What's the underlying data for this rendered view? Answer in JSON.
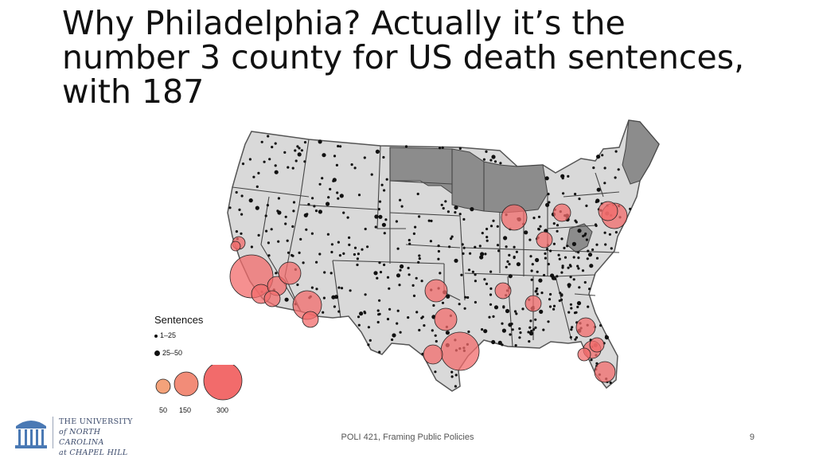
{
  "slide": {
    "title": "Why Philadelphia? Actually it’s the number 3 county for US death sentences, with 187",
    "footer": "POLI 421, Framing Public Policies",
    "page_number": "9"
  },
  "legend": {
    "title": "Sentences",
    "small_items": [
      "1–25",
      "25–50"
    ],
    "bubble_labels": [
      "50",
      "150",
      "300"
    ]
  },
  "logo": {
    "line1": "THE UNIVERSITY",
    "line2": "of NORTH CAROLINA",
    "line3": "at CHAPEL HILL",
    "icon": "old-well-icon"
  },
  "colors": {
    "bubble": "#f26b6b",
    "no_death_penalty_states": "#8c8c8c",
    "states": "#d9d9d9",
    "dots": "#111111"
  }
}
